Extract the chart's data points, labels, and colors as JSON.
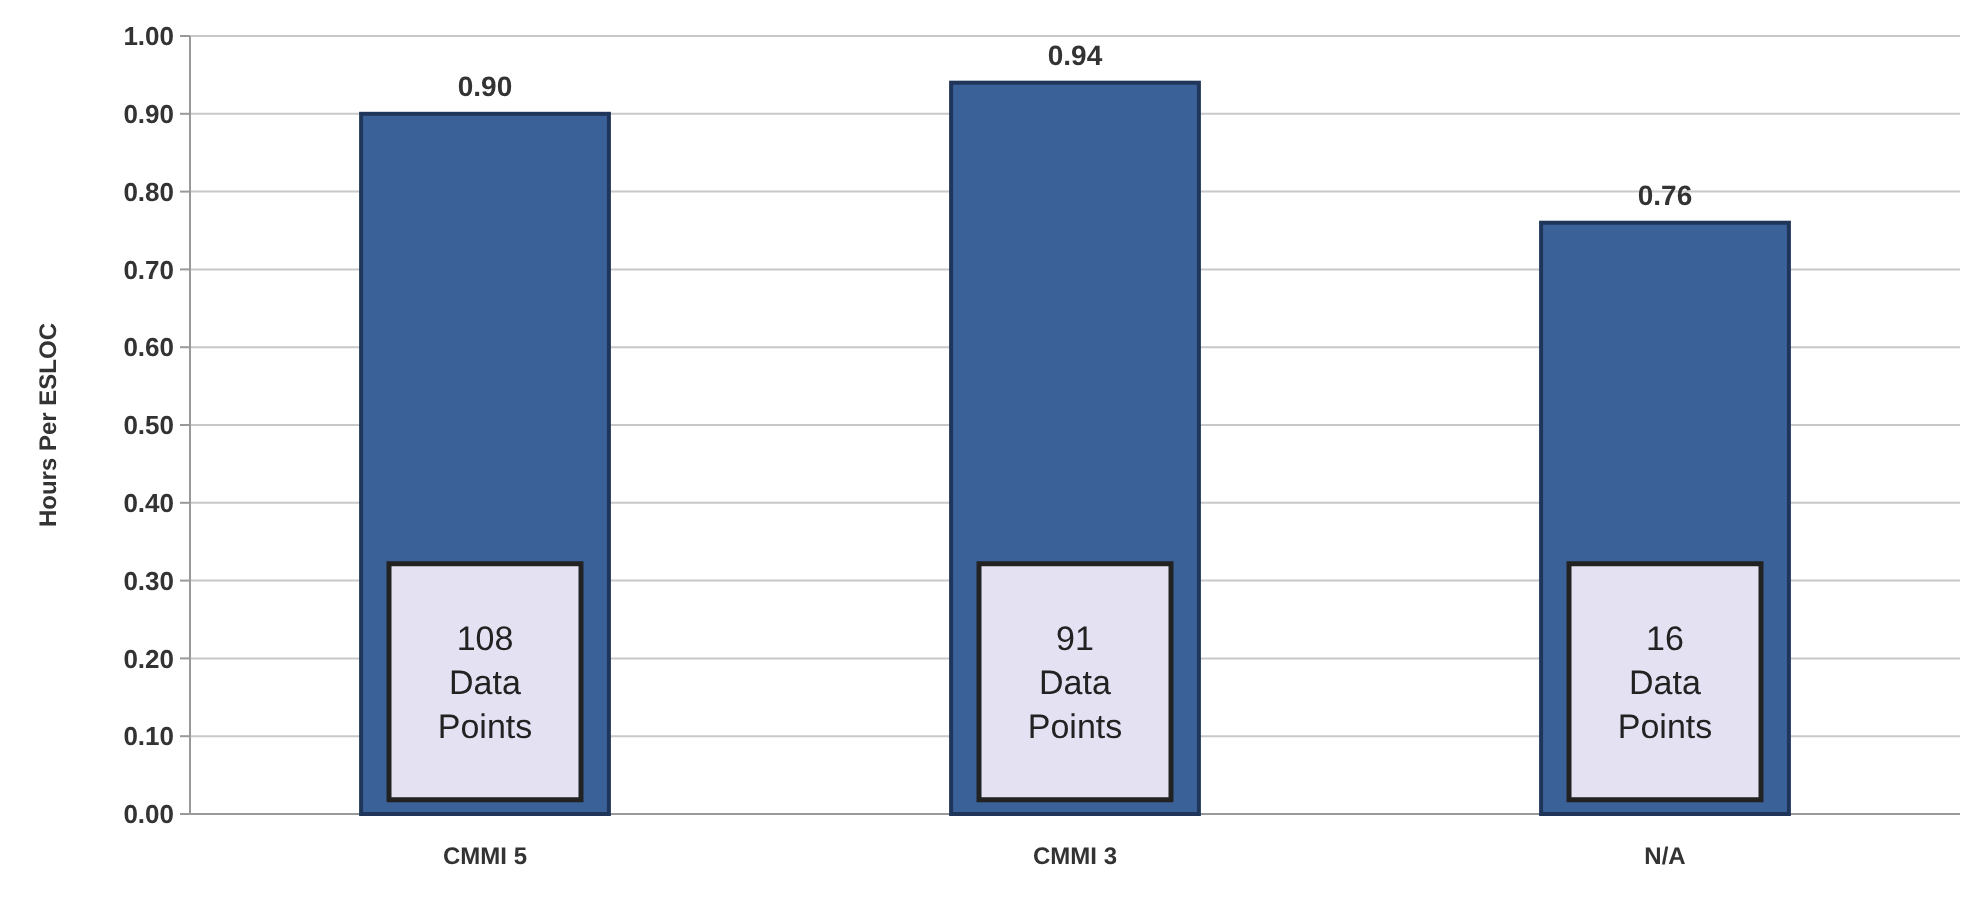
{
  "chart_data": {
    "type": "bar",
    "ylabel": "Hours Per ESLOC",
    "categories": [
      "CMMI 5",
      "CMMI 3",
      "N/A"
    ],
    "values": [
      0.9,
      0.94,
      0.76
    ],
    "value_labels": [
      "0.90",
      "0.94",
      "0.76"
    ],
    "color": "#3b6199",
    "ylim": [
      0,
      1
    ],
    "yticks": [
      {
        "value": 0,
        "label": "0.00"
      },
      {
        "value": 0.1,
        "label": "0.10"
      },
      {
        "value": 0.2,
        "label": "0.20"
      },
      {
        "value": 0.3,
        "label": "0.30"
      },
      {
        "value": 0.4,
        "label": "0.40"
      },
      {
        "value": 0.5,
        "label": "0.50"
      },
      {
        "value": 0.6,
        "label": "0.60"
      },
      {
        "value": 0.7,
        "label": "0.70"
      },
      {
        "value": 0.8,
        "label": "0.80"
      },
      {
        "value": 0.9,
        "label": "0.90"
      },
      {
        "value": 1,
        "label": "1.00"
      }
    ],
    "grid": "y",
    "annotations": [
      "108\nData\nPoints",
      "91\nData\nPoints",
      "16\nData\nPoints"
    ]
  }
}
